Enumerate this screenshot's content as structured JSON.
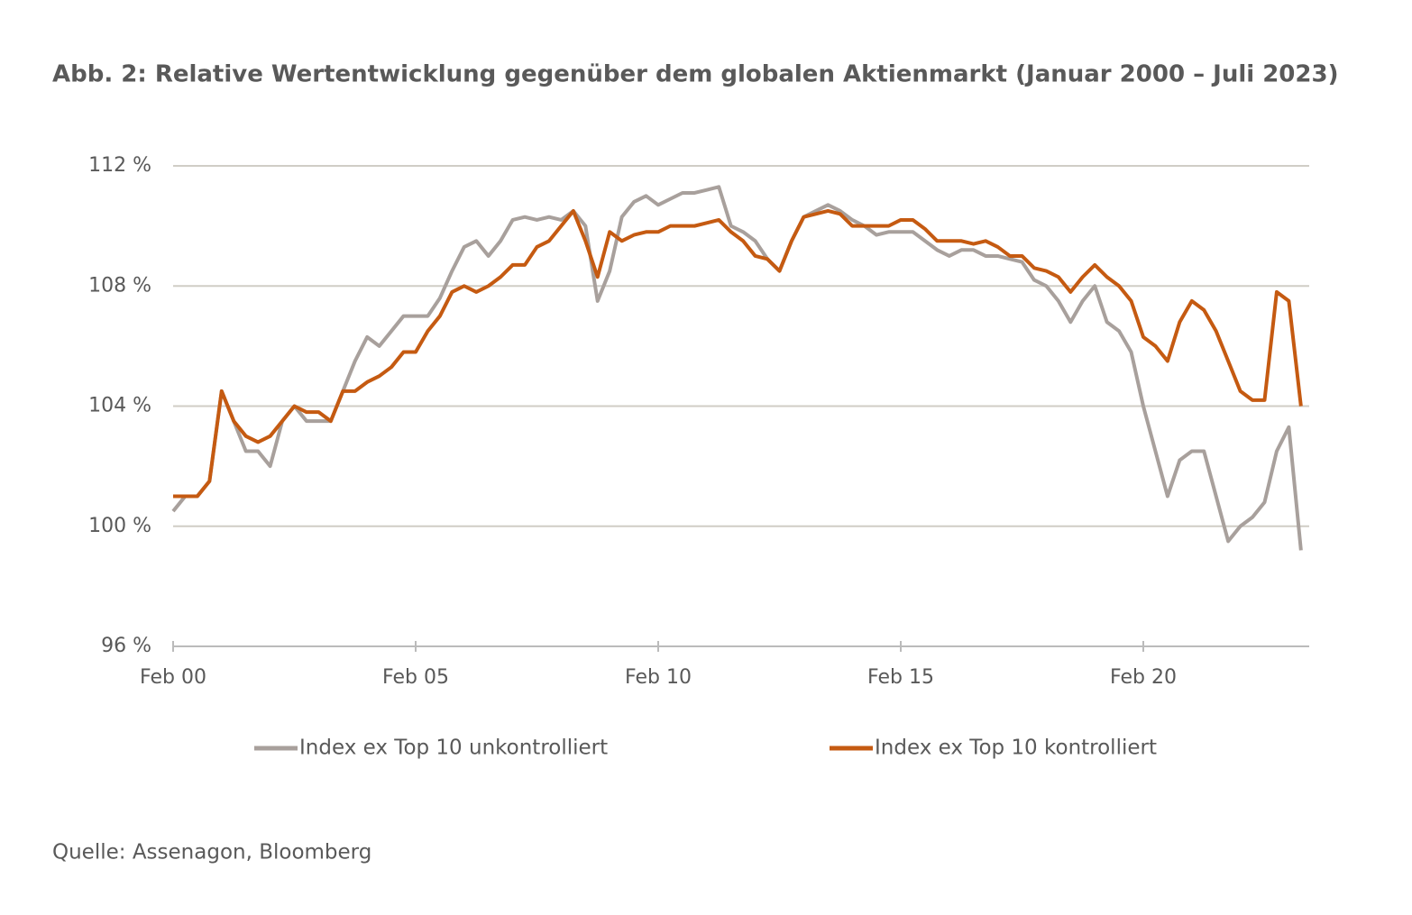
{
  "chart_data": {
    "type": "line",
    "title": "Abb. 2: Relative Wertentwicklung gegenüber dem globalen Aktienmarkt (Januar 2000 – Juli 2023)",
    "source": "Quelle: Assenagon, Bloomberg",
    "x": [
      "Feb 00",
      null,
      null,
      null,
      null,
      null,
      null,
      null,
      null,
      null,
      null,
      null,
      null,
      null,
      null,
      null,
      null,
      null,
      null,
      null,
      "Feb 05",
      null,
      null,
      null,
      null,
      null,
      null,
      null,
      null,
      null,
      null,
      null,
      null,
      null,
      null,
      null,
      null,
      null,
      null,
      null,
      "Feb 10",
      null,
      null,
      null,
      null,
      null,
      null,
      null,
      null,
      null,
      null,
      null,
      null,
      null,
      null,
      null,
      null,
      null,
      null,
      null,
      "Feb 15",
      null,
      null,
      null,
      null,
      null,
      null,
      null,
      null,
      null,
      null,
      null,
      null,
      null,
      null,
      null,
      null,
      null,
      null,
      null,
      "Feb 20",
      null,
      null,
      null,
      null,
      null,
      null,
      null,
      null,
      null,
      null,
      null,
      null,
      null
    ],
    "series": [
      {
        "name": "Index ex Top 10 unkontrolliert",
        "color": "#a8a09c",
        "values": [
          100.5,
          101,
          101,
          101.5,
          104.5,
          103.5,
          102.5,
          102.5,
          102,
          103.5,
          104,
          103.5,
          103.5,
          103.5,
          104.5,
          105.5,
          106.3,
          106,
          106.5,
          107,
          107,
          107,
          107.6,
          108.5,
          109.3,
          109.5,
          109,
          109.5,
          110.2,
          110.3,
          110.2,
          110.3,
          110.2,
          110.5,
          110,
          107.5,
          108.5,
          110.3,
          110.8,
          111,
          110.7,
          110.9,
          111.1,
          111.1,
          111.2,
          111.3,
          110,
          109.8,
          109.5,
          108.9,
          108.5,
          109.5,
          110.3,
          110.5,
          110.7,
          110.5,
          110.2,
          110,
          109.7,
          109.8,
          109.8,
          109.8,
          109.5,
          109.2,
          109,
          109.2,
          109.2,
          109,
          109,
          108.9,
          108.8,
          108.2,
          108,
          107.5,
          106.8,
          107.5,
          108,
          106.8,
          106.5,
          105.8,
          104,
          102.5,
          101,
          102.2,
          102.5,
          102.5,
          101,
          99.5,
          100,
          100.3,
          100.8,
          102.5,
          103.3,
          99.2
        ]
      },
      {
        "name": "Index ex Top 10 kontrolliert",
        "color": "#c55a11",
        "values": [
          101,
          101,
          101,
          101.5,
          104.5,
          103.5,
          103,
          102.8,
          103,
          103.5,
          104,
          103.8,
          103.8,
          103.5,
          104.5,
          104.5,
          104.8,
          105,
          105.3,
          105.8,
          105.8,
          106.5,
          107,
          107.8,
          108,
          107.8,
          108,
          108.3,
          108.7,
          108.7,
          109.3,
          109.5,
          110,
          110.5,
          109.5,
          108.3,
          109.8,
          109.5,
          109.7,
          109.8,
          109.8,
          110,
          110,
          110,
          110.1,
          110.2,
          109.8,
          109.5,
          109,
          108.9,
          108.5,
          109.5,
          110.3,
          110.4,
          110.5,
          110.4,
          110,
          110,
          110,
          110,
          110.2,
          110.2,
          109.9,
          109.5,
          109.5,
          109.5,
          109.4,
          109.5,
          109.3,
          109,
          109,
          108.6,
          108.5,
          108.3,
          107.8,
          108.3,
          108.7,
          108.3,
          108,
          107.5,
          106.3,
          106,
          105.5,
          106.8,
          107.5,
          107.2,
          106.5,
          105.5,
          104.5,
          104.2,
          104.2,
          107.8,
          107.5,
          104
        ]
      }
    ],
    "ylim": [
      96,
      112
    ],
    "yticks": [
      {
        "value": 96,
        "label": "96 %"
      },
      {
        "value": 100,
        "label": "100 %"
      },
      {
        "value": 104,
        "label": "104 %"
      },
      {
        "value": 108,
        "label": "108 %"
      },
      {
        "value": 112,
        "label": "112 %"
      }
    ],
    "grid": true,
    "legend": "bottom"
  }
}
